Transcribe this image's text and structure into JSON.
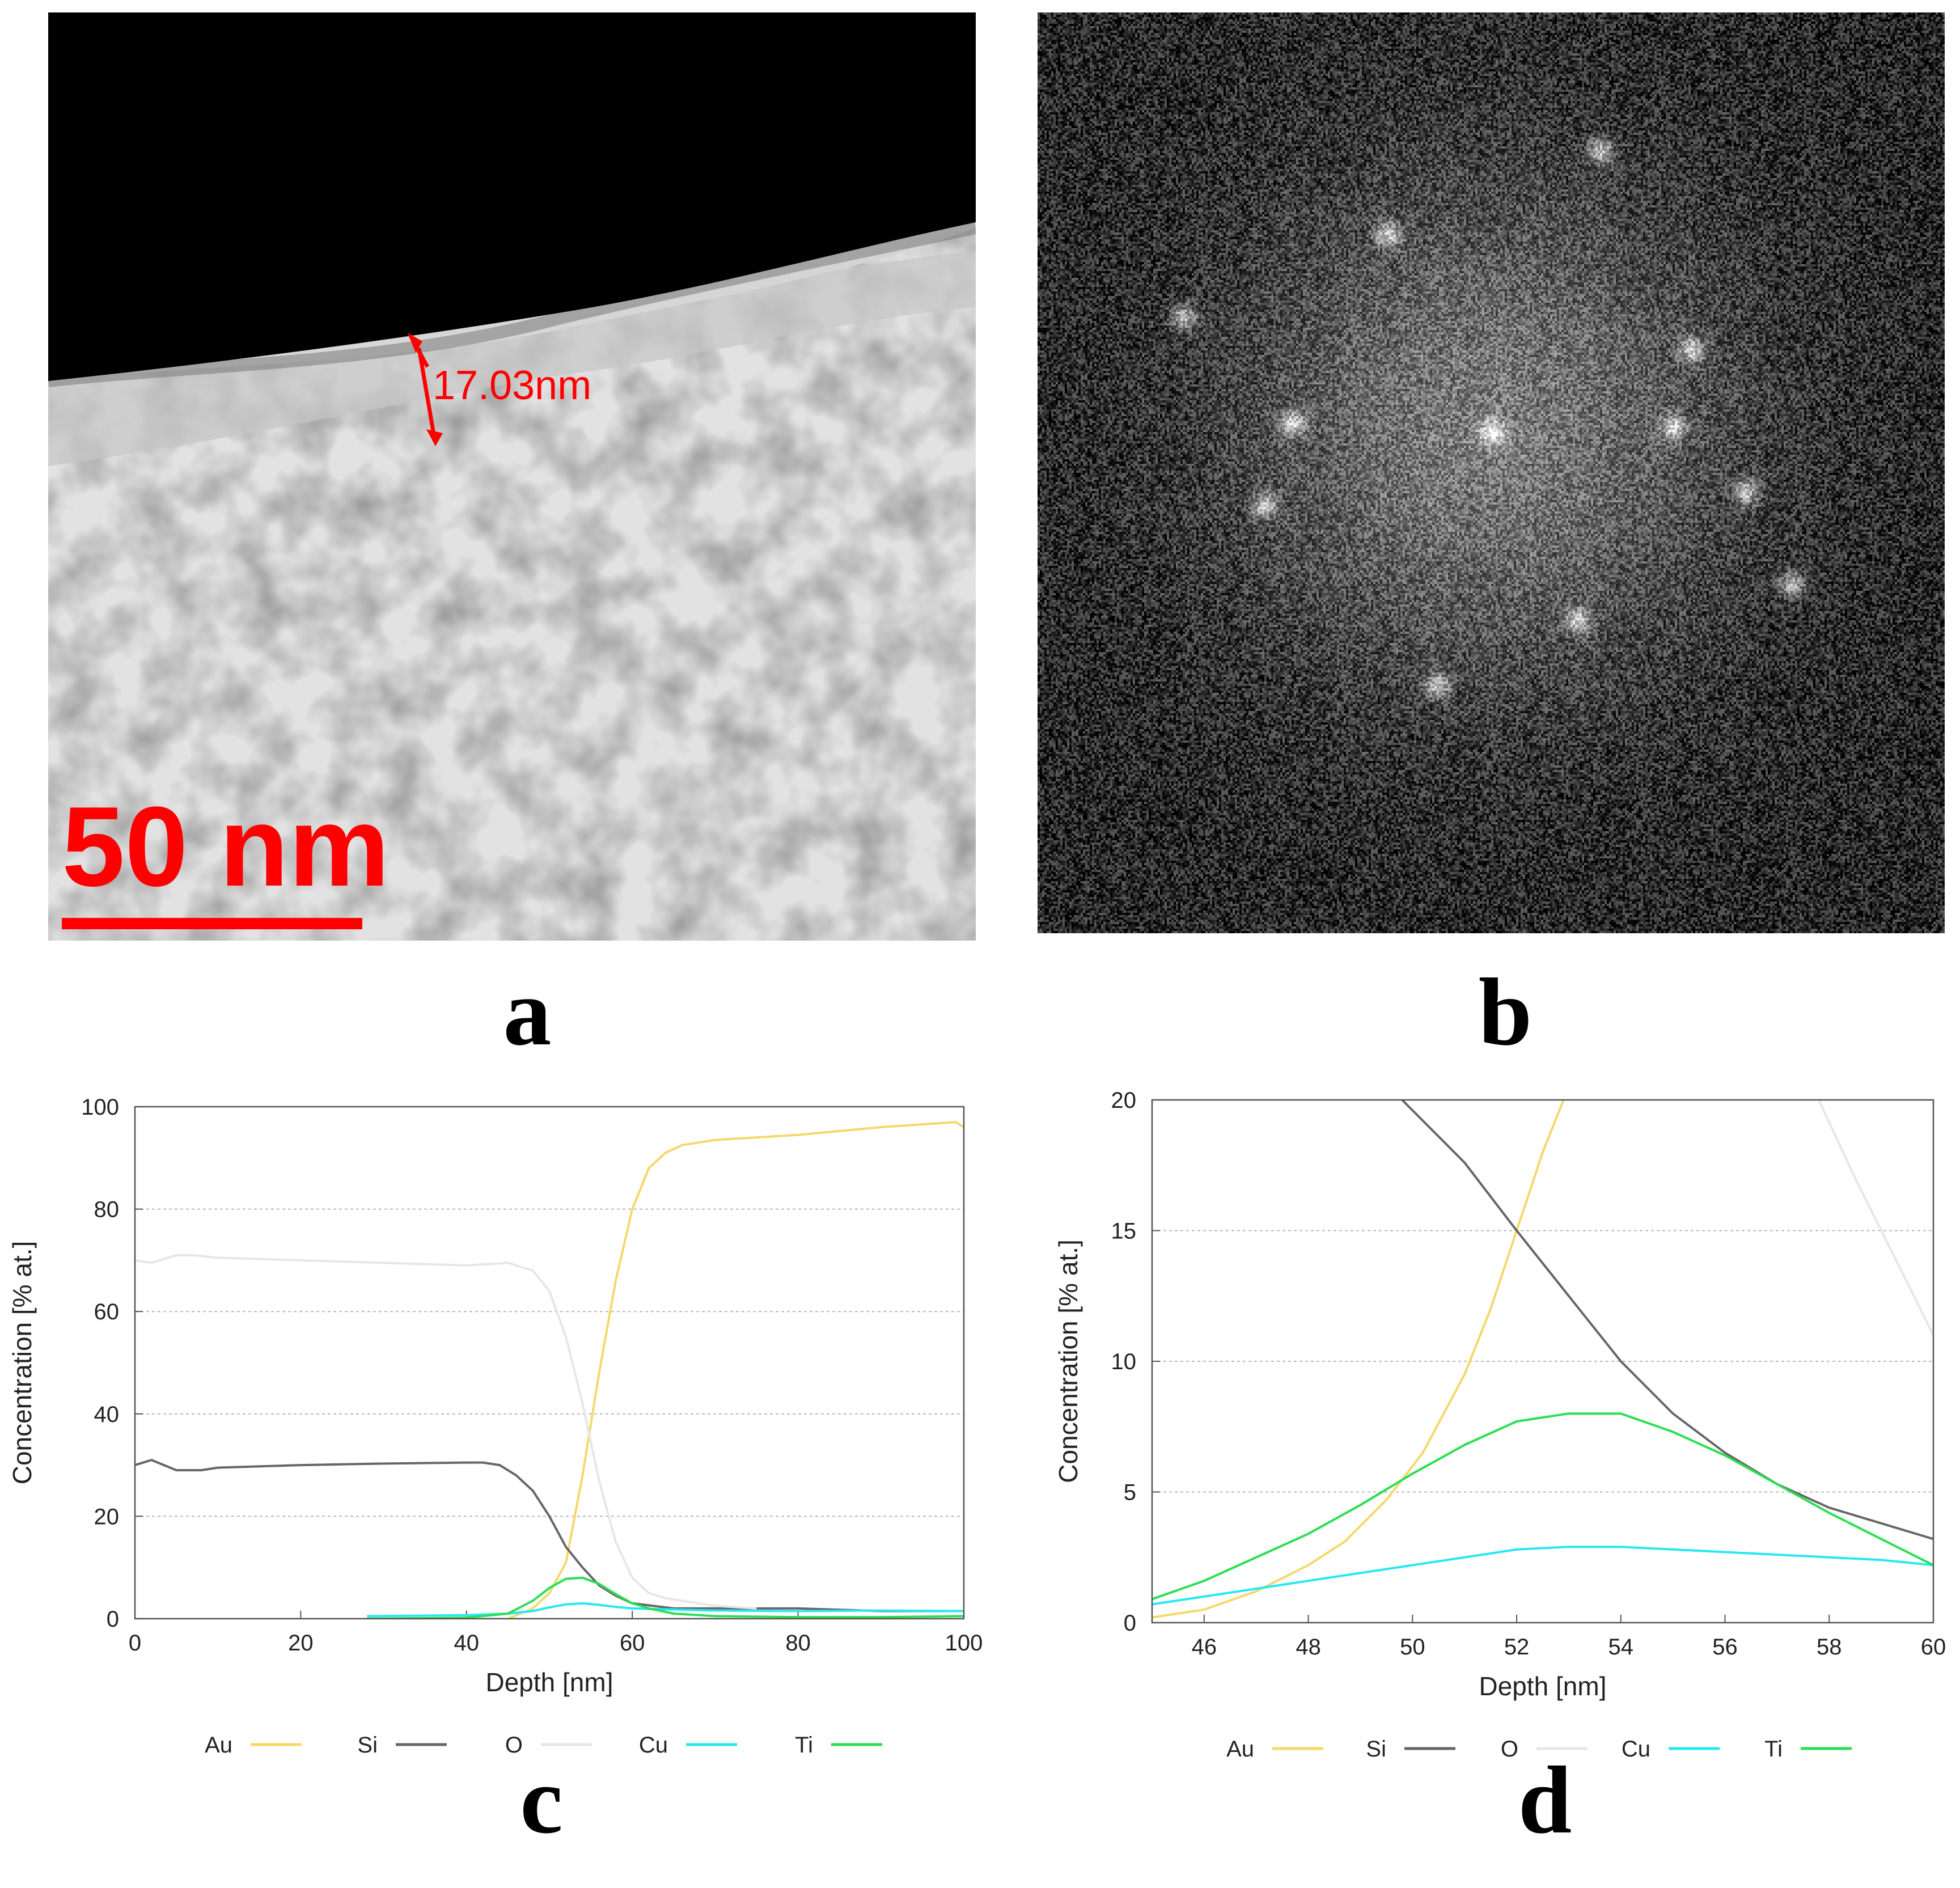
{
  "panels": {
    "a": {
      "letter": "a",
      "measurement_label": "17.03nm",
      "scale_bar_label": "50 nm",
      "accent_color": "#ff0000"
    },
    "b": {
      "letter": "b"
    },
    "c": {
      "letter": "c"
    },
    "d": {
      "letter": "d"
    }
  },
  "chart_data": [
    {
      "type": "line",
      "panel": "c",
      "xlabel": "Depth [nm]",
      "ylabel": "Concentration [% at.]",
      "xlim": [
        0,
        100
      ],
      "ylim": [
        0,
        100
      ],
      "x_ticks": [
        "0",
        "20",
        "40",
        "60",
        "80",
        "100"
      ],
      "y_ticks": [
        "0",
        "20",
        "40",
        "60",
        "80",
        "100"
      ],
      "y_tick_values": [
        0,
        20,
        40,
        60,
        80,
        100
      ],
      "x_tick_values": [
        0,
        20,
        40,
        60,
        80,
        100
      ],
      "grid": true,
      "legend_position": "bottom",
      "series": [
        {
          "name": "Au",
          "color": "#f4d86a",
          "x": [
            45,
            48,
            50,
            52,
            54,
            56,
            58,
            60,
            62,
            64,
            66,
            70,
            80,
            90,
            99,
            100
          ],
          "y": [
            0,
            2,
            5,
            11,
            28,
            48,
            66,
            80,
            88,
            91,
            92.5,
            93.5,
            94.5,
            96,
            97,
            96
          ]
        },
        {
          "name": "Si",
          "color": "#666666",
          "x": [
            0,
            2,
            5,
            8,
            10,
            20,
            30,
            40,
            42,
            44,
            46,
            48,
            50,
            52,
            54,
            56,
            58,
            60,
            65,
            70,
            80,
            90,
            100
          ],
          "y": [
            30,
            31,
            29,
            29,
            29.5,
            30,
            30.3,
            30.5,
            30.5,
            30,
            28,
            25,
            20,
            14,
            10,
            6.5,
            4.5,
            3,
            2,
            2,
            2,
            1.5,
            1.5
          ]
        },
        {
          "name": "O",
          "color": "#e6e6e6",
          "x": [
            0,
            2,
            5,
            7,
            10,
            20,
            30,
            40,
            45,
            48,
            50,
            52,
            54,
            56,
            58,
            60,
            62,
            64,
            66,
            70,
            75
          ],
          "y": [
            70,
            69.5,
            71,
            71,
            70.5,
            70,
            69.5,
            69,
            69.5,
            68,
            64,
            55,
            42,
            27,
            15,
            8,
            5,
            4,
            3.5,
            2.5,
            2
          ]
        },
        {
          "name": "Cu",
          "color": "#27e8f2",
          "x": [
            28,
            40,
            45,
            48,
            50,
            52,
            54,
            56,
            58,
            60,
            65,
            70,
            80,
            90,
            100
          ],
          "y": [
            0.5,
            0.7,
            1,
            1.5,
            2.2,
            2.8,
            3,
            2.7,
            2.3,
            2,
            1.8,
            1.6,
            1.5,
            1.6,
            1.5
          ]
        },
        {
          "name": "Ti",
          "color": "#2adf52",
          "x": [
            28,
            40,
            45,
            48,
            50,
            52,
            54,
            56,
            58,
            60,
            62,
            65,
            70,
            80,
            90,
            100
          ],
          "y": [
            0,
            0.2,
            1,
            3.5,
            6,
            7.8,
            8,
            6.8,
            4.8,
            3,
            2,
            1,
            0.5,
            0.3,
            0.3,
            0.5
          ]
        }
      ]
    },
    {
      "type": "line",
      "panel": "d",
      "xlabel": "Depth [nm]",
      "ylabel": "Concentration [% at.]",
      "xlim": [
        45,
        60
      ],
      "ylim": [
        0,
        20
      ],
      "x_ticks": [
        "46",
        "48",
        "50",
        "52",
        "54",
        "56",
        "58",
        "60"
      ],
      "x_tick_values": [
        46,
        48,
        50,
        52,
        54,
        56,
        58,
        60
      ],
      "y_ticks": [
        "0",
        "5",
        "10",
        "15",
        "20"
      ],
      "y_tick_values": [
        0,
        5,
        10,
        15,
        20
      ],
      "grid": true,
      "legend_position": "bottom",
      "series": [
        {
          "name": "Au",
          "color": "#f4d86a",
          "x": [
            45,
            46,
            47,
            48,
            48.7,
            49.5,
            50.2,
            51,
            51.5,
            52,
            52.5,
            53
          ],
          "y": [
            0.2,
            0.5,
            1.2,
            2.2,
            3.1,
            4.7,
            6.5,
            9.5,
            12,
            15,
            18,
            20.5
          ]
        },
        {
          "name": "Si",
          "color": "#666666",
          "x": [
            49.8,
            50.5,
            51,
            52,
            53,
            54,
            55,
            56,
            57,
            58,
            59,
            60
          ],
          "y": [
            20,
            18.6,
            17.6,
            15,
            12.5,
            10,
            8,
            6.5,
            5.3,
            4.4,
            3.8,
            3.2
          ]
        },
        {
          "name": "O",
          "color": "#e6e6e6",
          "x": [
            57.8,
            58.5,
            59,
            59.5,
            60
          ],
          "y": [
            20,
            17,
            15,
            13,
            11
          ]
        },
        {
          "name": "Cu",
          "color": "#27e8f2",
          "x": [
            45,
            46,
            47,
            48,
            49,
            50,
            51,
            52,
            53,
            54,
            55,
            56,
            57,
            58,
            59,
            60
          ],
          "y": [
            0.7,
            1.0,
            1.3,
            1.6,
            1.9,
            2.2,
            2.5,
            2.8,
            2.9,
            2.9,
            2.8,
            2.7,
            2.6,
            2.5,
            2.4,
            2.2
          ]
        },
        {
          "name": "Ti",
          "color": "#2adf52",
          "x": [
            45,
            46,
            47,
            48,
            49,
            50,
            51,
            52,
            53,
            54,
            55,
            56,
            57,
            58,
            59,
            60
          ],
          "y": [
            0.9,
            1.6,
            2.5,
            3.4,
            4.5,
            5.7,
            6.8,
            7.7,
            8.0,
            8.0,
            7.3,
            6.4,
            5.3,
            4.2,
            3.2,
            2.2
          ]
        }
      ]
    }
  ]
}
